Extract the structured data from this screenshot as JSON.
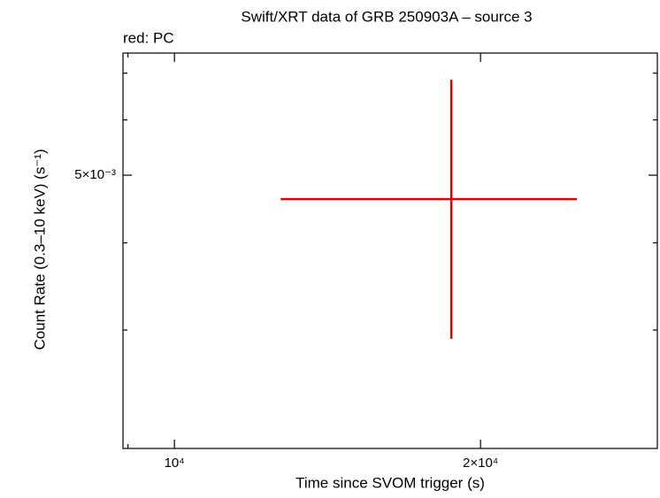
{
  "chart_data": {
    "type": "scatter",
    "title": "Swift/XRT data of GRB 250903A – source 3",
    "subtitle": "red: PC",
    "x_label": "Time since SVOM trigger (s)",
    "y_label": "Count Rate (0.3–10 keV) (s⁻¹)",
    "log_x": true,
    "log_y": true,
    "xlim": [
      8900,
      29850
    ],
    "ylim": [
      0.00203,
      0.00748
    ],
    "xticks": [
      {
        "value": 9000,
        "label": null
      },
      {
        "value": 10000,
        "label": "10⁴"
      },
      {
        "value": 20000,
        "label": "2×10⁴"
      }
    ],
    "yticks": [
      {
        "value": 0.003,
        "label": null
      },
      {
        "value": 0.004,
        "label": null
      },
      {
        "value": 0.005,
        "label": "5×10⁻³"
      },
      {
        "value": 0.006,
        "label": null
      },
      {
        "value": 0.007,
        "label": null
      }
    ],
    "series": [
      {
        "color": "#e00000",
        "x": [
          18720
        ],
        "xerr_minus": [
          6000
        ],
        "xerr_plus": [
          6160
        ],
        "values": [
          0.00462
        ],
        "yerr_minus": [
          0.001705
        ],
        "yerr_plus": [
          0.00223
        ]
      }
    ]
  }
}
